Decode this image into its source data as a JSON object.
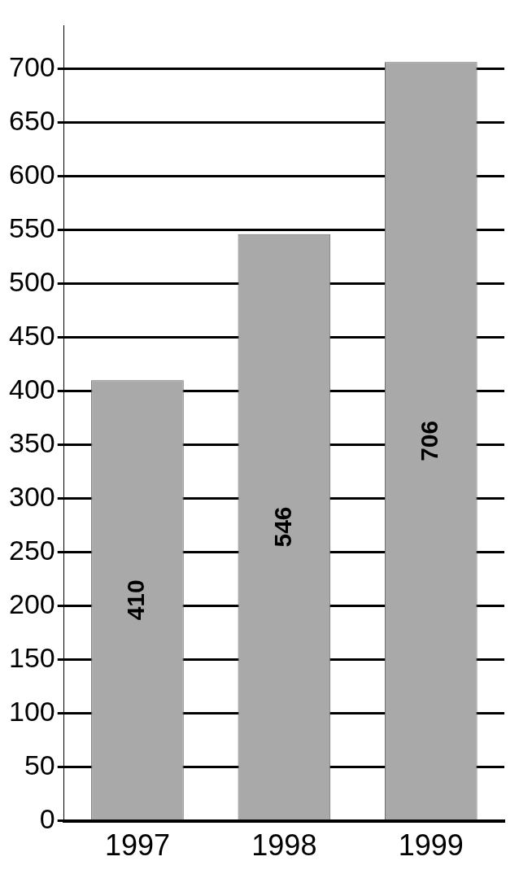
{
  "chart_data": {
    "type": "bar",
    "categories": [
      "1997",
      "1998",
      "1999"
    ],
    "values": [
      410,
      546,
      706
    ],
    "color": "#a9a9a9",
    "ylim": [
      0,
      740
    ],
    "yticks": [
      0,
      50,
      100,
      150,
      200,
      250,
      300,
      350,
      400,
      450,
      500,
      550,
      600,
      650,
      700
    ],
    "grid": "y",
    "data_labels": true
  }
}
